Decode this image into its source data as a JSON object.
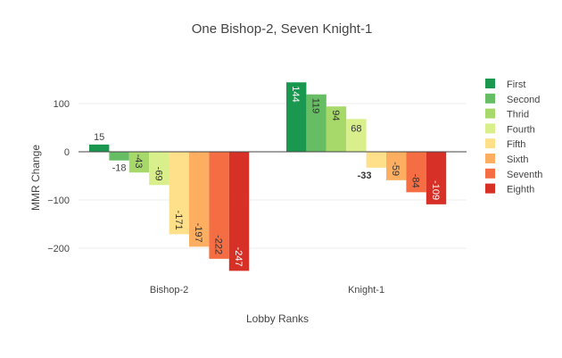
{
  "chart_data": {
    "type": "bar",
    "title": "One Bishop-2, Seven Knight-1",
    "xlabel": "Lobby Ranks",
    "ylabel": "MMR Change",
    "categories": [
      "Bishop-2",
      "Knight-1"
    ],
    "yticks": [
      100,
      0,
      -100,
      -200
    ],
    "ylim": [
      -260,
      160
    ],
    "grid": true,
    "legend_position": "right",
    "series": [
      {
        "name": "First",
        "color": "#1a9850",
        "values": [
          15,
          144
        ]
      },
      {
        "name": "Second",
        "color": "#66bd63",
        "values": [
          -18,
          119
        ]
      },
      {
        "name": "Thrid",
        "color": "#a6d96a",
        "values": [
          -43,
          94
        ]
      },
      {
        "name": "Fourth",
        "color": "#d9ef8b",
        "values": [
          -69,
          68
        ]
      },
      {
        "name": "Fifth",
        "color": "#fee08b",
        "values": [
          -171,
          -33
        ]
      },
      {
        "name": "Sixth",
        "color": "#fdae61",
        "values": [
          -197,
          -59
        ]
      },
      {
        "name": "Seventh",
        "color": "#f46d43",
        "values": [
          -222,
          -84
        ]
      },
      {
        "name": "Eighth",
        "color": "#d73027",
        "values": [
          -247,
          -109
        ]
      }
    ]
  }
}
